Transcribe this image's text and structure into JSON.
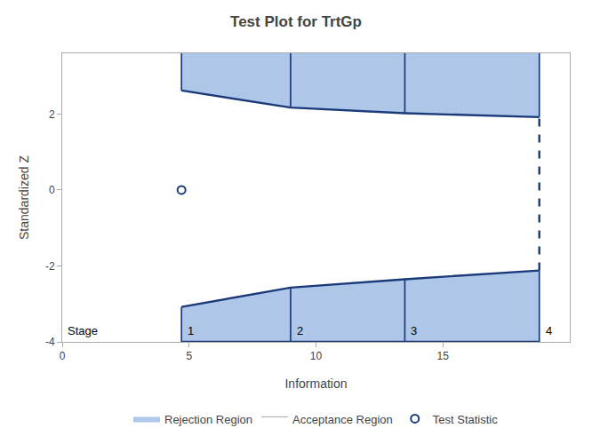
{
  "chart_data": {
    "type": "line",
    "title": "Test Plot for TrtGp",
    "xlabel": "Information",
    "ylabel": "Standardized Z",
    "xlim": [
      0,
      20
    ],
    "ylim": [
      -4.0,
      3.6
    ],
    "xticks": [
      0,
      5,
      10,
      15
    ],
    "yticks": [
      -4,
      -2,
      0,
      2
    ],
    "grid": false,
    "legend": "bottom",
    "x": [
      4.7,
      9.0,
      13.5,
      18.8
    ],
    "series": [
      {
        "values": [
          2.62,
          2.17,
          2.02,
          1.92
        ],
        "color": "#1a3a7a"
      },
      {
        "values": [
          -3.08,
          -2.57,
          -2.35,
          -2.12
        ],
        "color": "#1a3a7a"
      }
    ],
    "regions": [
      {
        "name": "Rejection Region",
        "color": "#aec6e8"
      },
      {
        "name": "Acceptance Region",
        "color": "#ffffff"
      }
    ],
    "points": {
      "name": "Test Statistic",
      "x": [
        4.7
      ],
      "y": [
        0.0
      ],
      "color": "#1a3a7a",
      "marker": "circle-open"
    },
    "stage_label": "Stage",
    "stage_numbers": [
      "1",
      "2",
      "3",
      "4"
    ]
  }
}
